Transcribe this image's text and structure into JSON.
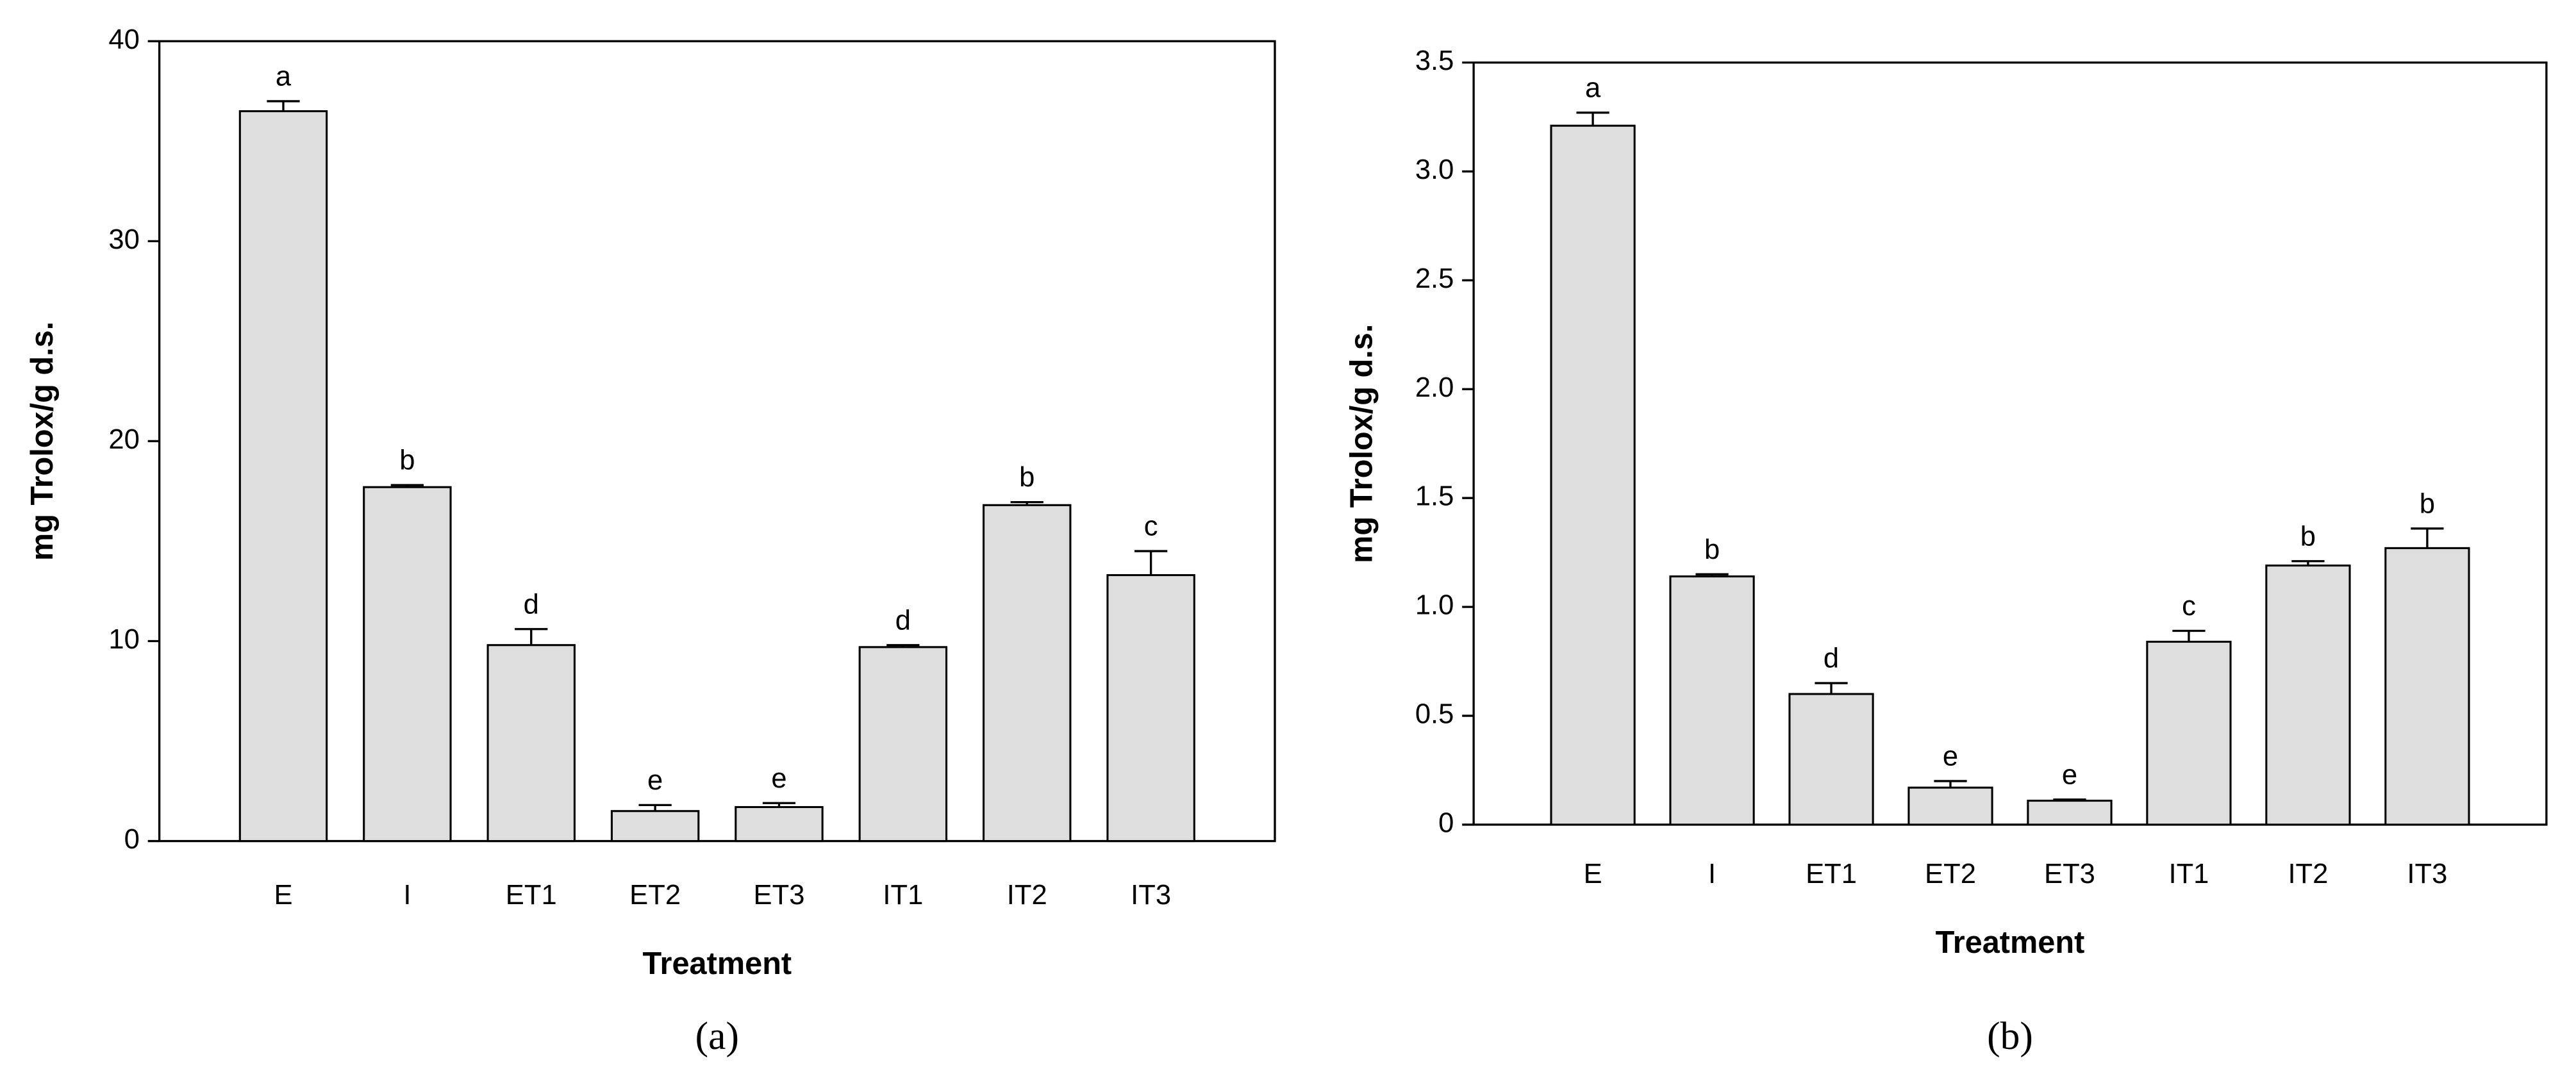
{
  "chart_data": [
    {
      "type": "bar",
      "panel_label": "(a)",
      "x_label": "Treatment",
      "y_label": "mg Trolox/g d.s.",
      "categories": [
        "E",
        "I",
        "ET1",
        "ET2",
        "ET3",
        "IT1",
        "IT2",
        "IT3"
      ],
      "values": [
        36.5,
        17.7,
        9.8,
        1.5,
        1.7,
        9.7,
        16.8,
        13.3
      ],
      "errors": [
        0.5,
        0.1,
        0.8,
        0.3,
        0.2,
        0.1,
        0.15,
        1.2
      ],
      "letters": [
        "a",
        "b",
        "d",
        "e",
        "e",
        "d",
        "b",
        "c"
      ],
      "color": "#dedede",
      "ylim": [
        0,
        40
      ],
      "yticks": [
        0,
        10,
        20,
        30,
        40
      ]
    },
    {
      "type": "bar",
      "panel_label": "(b)",
      "x_label": "Treatment",
      "y_label": "mg Trolox/g d.s.",
      "categories": [
        "E",
        "I",
        "ET1",
        "ET2",
        "ET3",
        "IT1",
        "IT2",
        "IT3"
      ],
      "values": [
        3.21,
        1.14,
        0.6,
        0.17,
        0.11,
        0.84,
        1.19,
        1.27
      ],
      "errors": [
        0.06,
        0.01,
        0.05,
        0.03,
        0.005,
        0.05,
        0.02,
        0.09
      ],
      "letters": [
        "a",
        "b",
        "d",
        "e",
        "e",
        "c",
        "b",
        "b"
      ],
      "color": "#dedede",
      "ylim": [
        0,
        3.5
      ],
      "yticks": [
        0,
        0.5,
        {
          "value": 1,
          "label": "1.0"
        },
        1.5,
        {
          "value": 2,
          "label": "2.0"
        },
        2.5,
        {
          "value": 3,
          "label": "3.0"
        },
        3.5
      ]
    }
  ]
}
